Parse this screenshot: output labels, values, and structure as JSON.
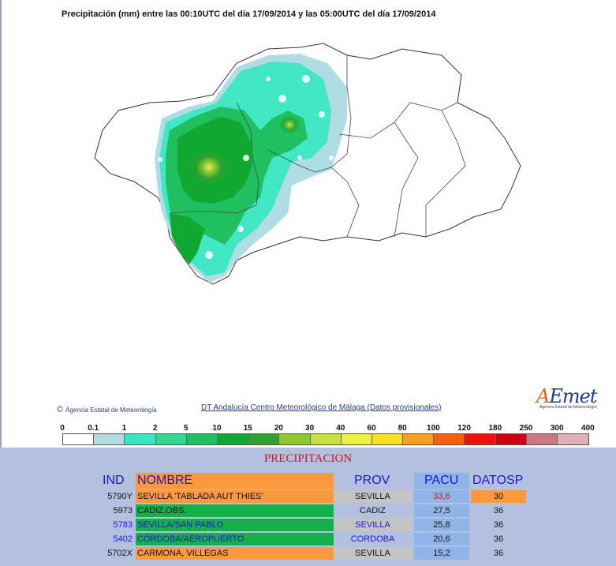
{
  "map": {
    "title": "Precipitación (mm) entre las 00:10UTC del día 17/09/2014 y las 05:00UTC del día 17/09/2014",
    "copyright": "Agencia Estatal de Meteorología",
    "credit": "DT Andalucía Centro Meteorológico de Málaga (Datos provisionales)",
    "logo_text": "AEmet",
    "logo_subtext": "Agencia Estatal de Meteorología",
    "icons": [
      "copyright-icon",
      "aemet-logo-icon"
    ]
  },
  "legend": {
    "ticks": [
      "0",
      "0.1",
      "1",
      "2",
      "5",
      "10",
      "15",
      "20",
      "30",
      "40",
      "60",
      "80",
      "100",
      "120",
      "180",
      "250",
      "300",
      "400"
    ],
    "colors": [
      "#ffffff",
      "#b0dde3",
      "#36e8c0",
      "#30d890",
      "#20c060",
      "#10a830",
      "#30a030",
      "#90c830",
      "#c8e040",
      "#f0f040",
      "#f8e020",
      "#f8a020",
      "#f86010",
      "#f01010",
      "#d00010",
      "#c87a80",
      "#e0b0b8"
    ]
  },
  "table": {
    "title": "PRECIPITACION",
    "headers": {
      "ind": "IND",
      "nombre": "NOMBRE",
      "prov": "PROV",
      "pacu": "PACU",
      "datosp": "DATOSP"
    },
    "rows": [
      {
        "ind": "5790Y",
        "nombre": "SEVILLA 'TABLADA AUT THIES'",
        "prov": "SEVILLA",
        "pacu": "33,6",
        "datosp": "30"
      },
      {
        "ind": "5973",
        "nombre": "CADIZ,OBS.",
        "prov": "CADIZ",
        "pacu": "27,5",
        "datosp": "36"
      },
      {
        "ind": "5783",
        "nombre": "SEVILLA/SAN PABLO",
        "prov": "SEVILLA",
        "pacu": "25,8",
        "datosp": "36"
      },
      {
        "ind": "5402",
        "nombre": "CÓRDOBA/AEROPUERTO",
        "prov": "CORDOBA",
        "pacu": "20,6",
        "datosp": "36"
      },
      {
        "ind": "5702X",
        "nombre": "CARMONA, VILLEGAS",
        "prov": "SEVILLA",
        "pacu": "15,2",
        "datosp": "36"
      }
    ],
    "colors": {
      "orange": "#fb9a3c",
      "green": "#14b04a",
      "grey": "#c4c4c4",
      "blue": "#8fb4e8",
      "header_text": "#1a18d0",
      "red_text": "#d4141c"
    }
  }
}
